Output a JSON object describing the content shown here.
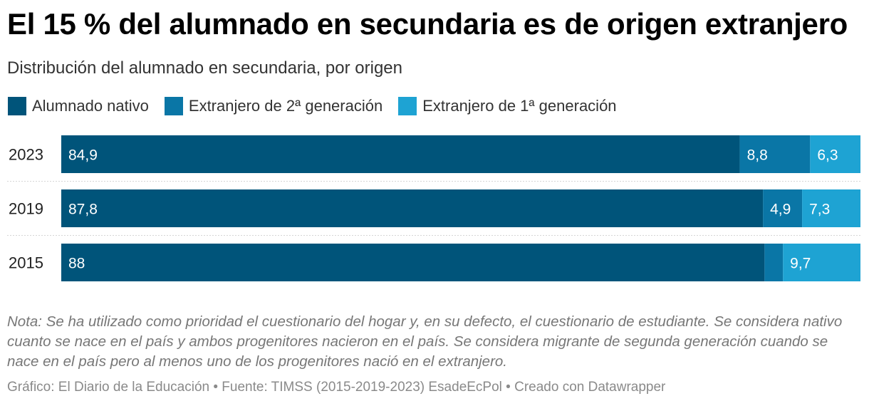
{
  "chart_data": {
    "type": "bar",
    "stacked": true,
    "orientation": "horizontal",
    "title": "El 15 % del alumnado en secundaria es de origen extranjero",
    "subtitle": "Distribución del alumnado en secundaria, por origen",
    "categories": [
      "2023",
      "2019",
      "2015"
    ],
    "series": [
      {
        "name": "Alumnado nativo",
        "color": "#00547a",
        "values": [
          84.9,
          87.8,
          88
        ],
        "labels": [
          "84,9",
          "87,8",
          "88"
        ]
      },
      {
        "name": "Extranjero de 2ª generación",
        "color": "#0a76a6",
        "values": [
          8.8,
          4.9,
          2.3
        ],
        "labels": [
          "8,8",
          "4,9",
          ""
        ]
      },
      {
        "name": "Extranjero de 1ª generación",
        "color": "#1ea3d3",
        "values": [
          6.3,
          7.3,
          9.7
        ],
        "labels": [
          "6,3",
          "7,3",
          "9,7"
        ]
      }
    ],
    "xlim": [
      0,
      100
    ],
    "legend": "top-left"
  },
  "note": "Nota: Se ha utilizado como prioridad el cuestionario del hogar y, en su defecto, el cuestionario de estudiante. Se considera nativo cuanto se nace en el país y ambos progenitores nacieron en el país. Se considera migrante de segunda generación cuando se nace en el país pero al menos uno de los progenitores nació en el extranjero.",
  "footer": "Gráfico: El Diario de la Educación • Fuente: TIMSS (2015-2019-2023) EsadeEcPol • Creado con Datawrapper"
}
